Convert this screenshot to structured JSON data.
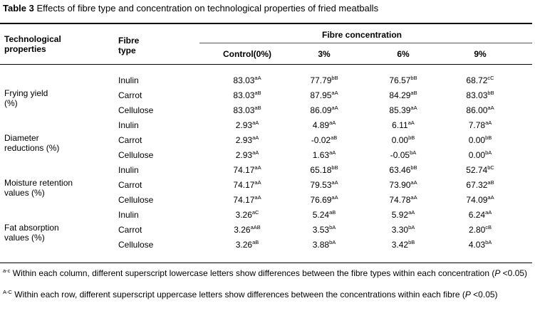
{
  "caption": {
    "label": "Table 3",
    "text": "Effects of fibre type and concentration on technological properties of fried meatballs"
  },
  "header": {
    "prop_line1": "Technological",
    "prop_line2": "properties",
    "fibre_line1": "Fibre",
    "fibre_line2": "type",
    "group": "Fibre concentration",
    "columns": [
      "Control(0%)",
      "3%",
      "6%",
      "9%"
    ]
  },
  "groups": [
    {
      "name_line1": "Frying yield",
      "name_line2": "(%)",
      "rows": [
        {
          "fibre": "Inulin",
          "cells": [
            {
              "v": "83.03",
              "s": "aA"
            },
            {
              "v": "77.79",
              "s": "bB"
            },
            {
              "v": "76.57",
              "s": "bB"
            },
            {
              "v": "68.72",
              "s": "cC"
            }
          ]
        },
        {
          "fibre": "Carrot",
          "cells": [
            {
              "v": "83.03",
              "s": "aB"
            },
            {
              "v": "87.95",
              "s": "aA"
            },
            {
              "v": "84.29",
              "s": "aB"
            },
            {
              "v": "83.03",
              "s": "bB"
            }
          ]
        },
        {
          "fibre": "Cellulose",
          "cells": [
            {
              "v": "83.03",
              "s": "aB"
            },
            {
              "v": "86.09",
              "s": "aA"
            },
            {
              "v": "85.39",
              "s": "aA"
            },
            {
              "v": "86.00",
              "s": "aA"
            }
          ]
        }
      ]
    },
    {
      "name_line1": "Diameter",
      "name_line2": "reductions (%)",
      "rows": [
        {
          "fibre": "Inulin",
          "cells": [
            {
              "v": "2.93",
              "s": "aA"
            },
            {
              "v": "4.89",
              "s": "aA"
            },
            {
              "v": "6.11",
              "s": "aA"
            },
            {
              "v": "7.78",
              "s": "aA"
            }
          ]
        },
        {
          "fibre": "Carrot",
          "cells": [
            {
              "v": "2.93",
              "s": "aA"
            },
            {
              "v": "-0.02",
              "s": "aB"
            },
            {
              "v": "0.00",
              "s": "bB"
            },
            {
              "v": "0.00",
              "s": "bB"
            }
          ]
        },
        {
          "fibre": "Cellulose",
          "cells": [
            {
              "v": "2.93",
              "s": "aA"
            },
            {
              "v": "1.63",
              "s": "aA"
            },
            {
              "v": "-0.05",
              "s": "bA"
            },
            {
              "v": "0.00",
              "s": "bA"
            }
          ]
        }
      ]
    },
    {
      "name_line1": "Moisture retention",
      "name_line2": "values (%)",
      "rows": [
        {
          "fibre": "Inulin",
          "cells": [
            {
              "v": "74.17",
              "s": "aA"
            },
            {
              "v": "65.18",
              "s": "bB"
            },
            {
              "v": "63.46",
              "s": "bB"
            },
            {
              "v": "52.74",
              "s": "bC"
            }
          ]
        },
        {
          "fibre": "Carrot",
          "cells": [
            {
              "v": "74.17",
              "s": "aA"
            },
            {
              "v": "79.53",
              "s": "aA"
            },
            {
              "v": "73.90",
              "s": "aA"
            },
            {
              "v": "67.32",
              "s": "aB"
            }
          ]
        },
        {
          "fibre": "Cellulose",
          "cells": [
            {
              "v": "74.17",
              "s": "aA"
            },
            {
              "v": "76.69",
              "s": "aA"
            },
            {
              "v": "74.78",
              "s": "aA"
            },
            {
              "v": "74.09",
              "s": "aA"
            }
          ]
        }
      ]
    },
    {
      "name_line1": "Fat absorption",
      "name_line2": "values (%)",
      "rows": [
        {
          "fibre": "Inulin",
          "cells": [
            {
              "v": "3.26",
              "s": "aC"
            },
            {
              "v": "5.24",
              "s": "aB"
            },
            {
              "v": "5.92",
              "s": "aA"
            },
            {
              "v": "6.24",
              "s": "aA"
            }
          ]
        },
        {
          "fibre": "Carrot",
          "cells": [
            {
              "v": "3.26",
              "s": "aAB"
            },
            {
              "v": "3.53",
              "s": "bA"
            },
            {
              "v": "3.30",
              "s": "bA"
            },
            {
              "v": "2.80",
              "s": "cB"
            }
          ]
        },
        {
          "fibre": "Cellulose",
          "cells": [
            {
              "v": "3.26",
              "s": "aB"
            },
            {
              "v": "3.88",
              "s": "bA"
            },
            {
              "v": "3.42",
              "s": "bB"
            },
            {
              "v": "4.03",
              "s": "bA"
            }
          ]
        }
      ]
    }
  ],
  "footnotes": [
    {
      "mark": "a-c",
      "text": " Within each column, different superscript lowercase letters show differences between the fibre types within each concentration (",
      "p": "P",
      "tail": " <0.05)"
    },
    {
      "mark": "A-C",
      "text": " Within each row, different superscript uppercase letters show differences between the concentrations within each fibre (",
      "p": "P",
      "tail": " <0.05)"
    }
  ]
}
